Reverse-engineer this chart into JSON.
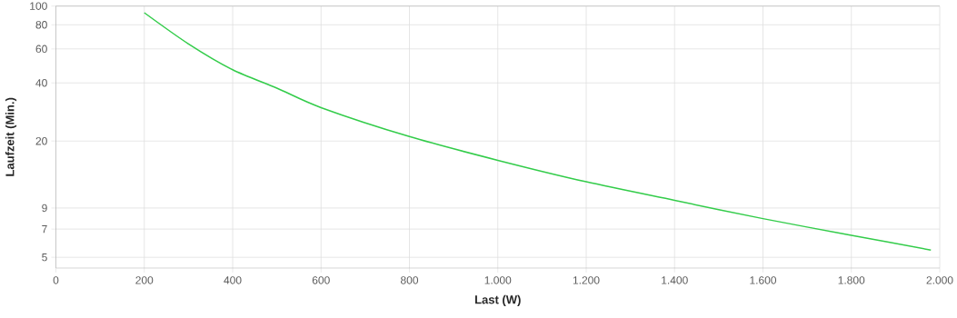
{
  "chart_data": {
    "type": "line",
    "xlabel": "Last (W)",
    "ylabel": "Laufzeit (Min.)",
    "x": [
      200,
      300,
      400,
      500,
      600,
      800,
      1000,
      1200,
      1400,
      1600,
      1800,
      1980
    ],
    "series": [
      {
        "color": "#33cc4a",
        "values": [
          92.4,
          63.7,
          46.8,
          37.6,
          29.8,
          21.1,
          15.9,
          12.3,
          9.86,
          7.93,
          6.5,
          5.45
        ]
      }
    ],
    "xlim": [
      0,
      2000
    ],
    "ylim": [
      4.4,
      100
    ],
    "xticks": [
      0,
      200,
      400,
      600,
      800,
      {
        "value": 1000,
        "label": "1.000"
      },
      {
        "value": 1200,
        "label": "1.200"
      },
      {
        "value": 1400,
        "label": "1.400"
      },
      {
        "value": 1600,
        "label": "1.600"
      },
      {
        "value": 1800,
        "label": "1.800"
      },
      {
        "value": 2000,
        "label": "2.000"
      }
    ],
    "yticks": [
      5,
      7,
      9,
      20,
      40,
      60,
      80,
      100
    ],
    "log": "y",
    "grid": true,
    "marker": "none",
    "line_style": "solid"
  }
}
